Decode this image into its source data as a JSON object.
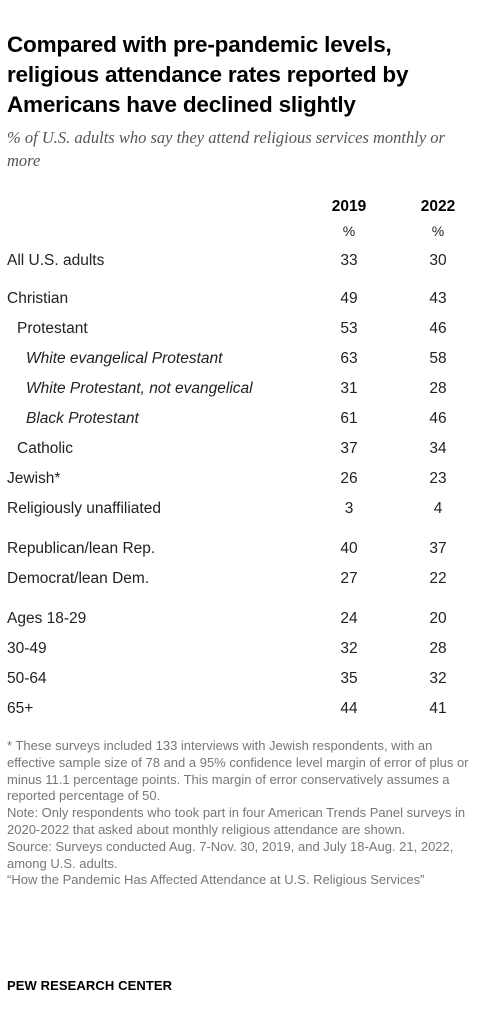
{
  "title": "Compared with pre-pandemic levels, religious attendance rates reported by Americans have declined slightly",
  "subtitle": "% of U.S. adults who say they attend religious services monthly or more",
  "chart_data": {
    "type": "table",
    "columns": [
      "2019",
      "2022"
    ],
    "units": [
      "%",
      "%"
    ],
    "rows": [
      {
        "label": "All U.S. adults",
        "indent": 1,
        "values": [
          "33",
          "30"
        ]
      },
      {
        "label": "Christian",
        "indent": 1,
        "values": [
          "49",
          "43"
        ]
      },
      {
        "label": "Protestant",
        "indent": 2,
        "values": [
          "53",
          "46"
        ]
      },
      {
        "label": "White evangelical Protestant",
        "indent": 3,
        "values": [
          "63",
          "58"
        ]
      },
      {
        "label": "White Protestant, not evangelical",
        "indent": 3,
        "values": [
          "31",
          "28"
        ]
      },
      {
        "label": "Black Protestant",
        "indent": 3,
        "values": [
          "61",
          "46"
        ]
      },
      {
        "label": "Catholic",
        "indent": 2,
        "values": [
          "37",
          "34"
        ]
      },
      {
        "label": "Jewish*",
        "indent": 1,
        "values": [
          "26",
          "23"
        ]
      },
      {
        "label": "Religiously unaffiliated",
        "indent": 1,
        "values": [
          "3",
          "4"
        ]
      },
      {
        "label": "Republican/lean Rep.",
        "indent": 1,
        "values": [
          "40",
          "37"
        ]
      },
      {
        "label": "Democrat/lean Dem.",
        "indent": 1,
        "values": [
          "27",
          "22"
        ]
      },
      {
        "label": "Ages 18-29",
        "indent": 1,
        "values": [
          "24",
          "20"
        ]
      },
      {
        "label": "30-49",
        "indent": 1,
        "values": [
          "32",
          "28"
        ]
      },
      {
        "label": "50-64",
        "indent": 1,
        "values": [
          "35",
          "32"
        ]
      },
      {
        "label": "65+",
        "indent": 1,
        "values": [
          "44",
          "41"
        ]
      }
    ]
  },
  "notes": {
    "footnote": "* These surveys included 133 interviews with Jewish respondents, with an effective sample size of 78 and a 95% confidence level margin of error of plus or minus 11.1 percentage points. This margin of error conservatively assumes a reported percentage of 50.",
    "note": "Note: Only respondents who took part in four American Trends Panel surveys in 2020-2022 that asked about monthly religious attendance are shown.",
    "source": "Source: Surveys conducted Aug. 7-Nov. 30, 2019, and July 18-Aug. 21, 2022, among U.S. adults.",
    "report": "“How the Pandemic Has Affected Attendance at U.S. Religious Services”"
  },
  "footer": "PEW RESEARCH CENTER"
}
